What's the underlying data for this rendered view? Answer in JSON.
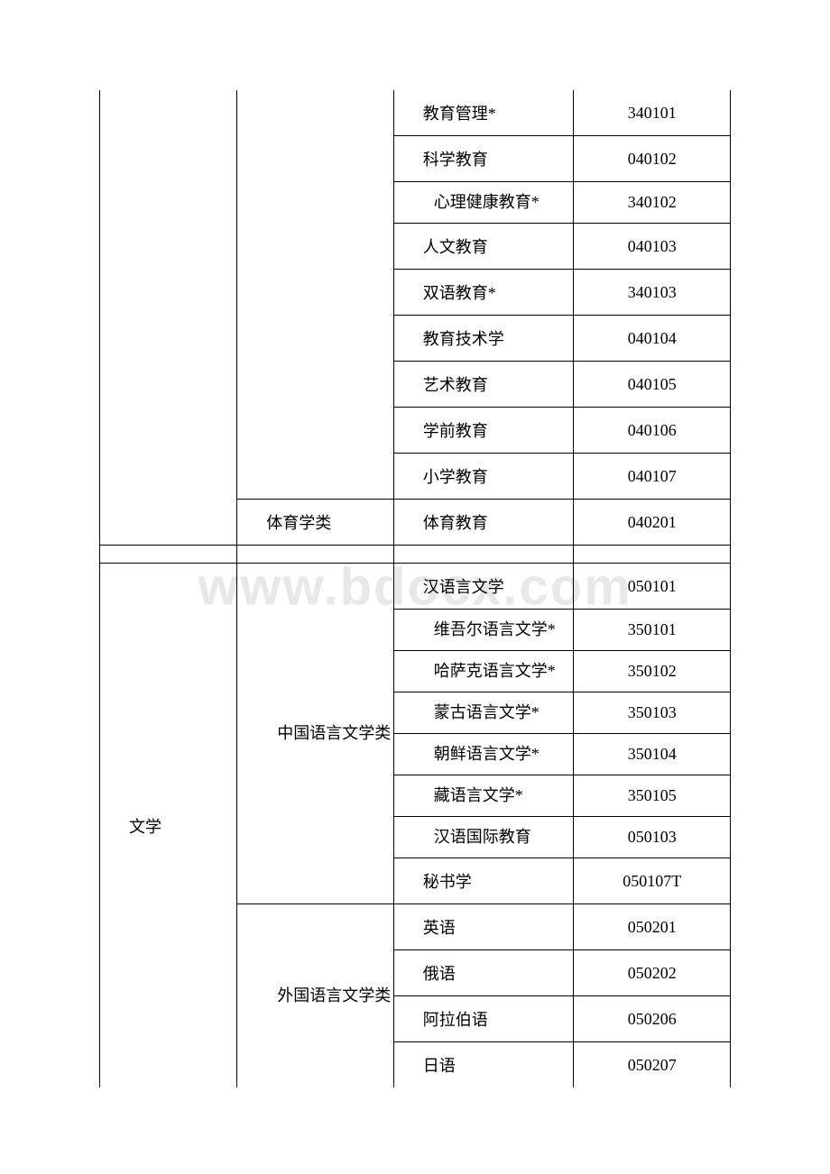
{
  "watermark": "www.bdocx.com",
  "table": {
    "font_size": 18,
    "border_color": "#000000",
    "text_color": "#000000",
    "sections": [
      {
        "discipline": "",
        "categories": [
          {
            "name": "",
            "majors": [
              {
                "name": "教育管理*",
                "code": "340101"
              },
              {
                "name": "科学教育",
                "code": "040102"
              },
              {
                "name": "心理健康教育*",
                "code": "340102"
              },
              {
                "name": "人文教育",
                "code": "040103"
              },
              {
                "name": "双语教育*",
                "code": "340103"
              },
              {
                "name": "教育技术学",
                "code": "040104"
              },
              {
                "name": "艺术教育",
                "code": "040105"
              },
              {
                "name": "学前教育",
                "code": "040106"
              },
              {
                "name": "小学教育",
                "code": "040107"
              }
            ]
          },
          {
            "name": "体育学类",
            "majors": [
              {
                "name": "体育教育",
                "code": "040201"
              }
            ]
          }
        ]
      },
      {
        "discipline": "文学",
        "categories": [
          {
            "name": "中国语言文学类",
            "majors": [
              {
                "name": "汉语言文学",
                "code": "050101"
              },
              {
                "name": "维吾尔语言文学*",
                "code": "350101"
              },
              {
                "name": "哈萨克语言文学*",
                "code": "350102"
              },
              {
                "name": "蒙古语言文学*",
                "code": "350103"
              },
              {
                "name": "朝鲜语言文学*",
                "code": "350104"
              },
              {
                "name": "藏语言文学*",
                "code": "350105"
              },
              {
                "name": "汉语国际教育",
                "code": "050103"
              },
              {
                "name": "秘书学",
                "code": "050107T"
              }
            ]
          },
          {
            "name": "外国语言文学类",
            "majors": [
              {
                "name": "英语",
                "code": "050201"
              },
              {
                "name": "俄语",
                "code": "050202"
              },
              {
                "name": "阿拉伯语",
                "code": "050206"
              },
              {
                "name": "日语",
                "code": "050207"
              }
            ]
          }
        ]
      }
    ]
  }
}
